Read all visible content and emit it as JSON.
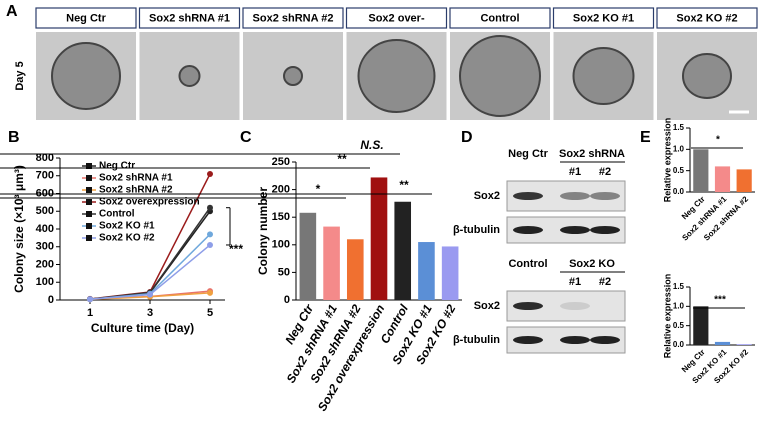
{
  "panel_A": {
    "panel_label": "A",
    "row_label": "Day 5",
    "labels": [
      "Neg Ctr",
      "Sox2 shRNA #1",
      "Sox2 shRNA #2",
      "Sox2 over-",
      "Control",
      "Sox2 KO #1",
      "Sox2 KO #2"
    ]
  },
  "panel_D": {
    "panel_label": "D",
    "top": {
      "lanes": [
        "Neg Ctr",
        "Sox2 shRNA"
      ],
      "sublanes": [
        "#1",
        "#2"
      ],
      "rows": [
        "Sox2",
        "β-tubulin"
      ]
    },
    "bottom": {
      "lanes": [
        "Control",
        "Sox2 KO"
      ],
      "sublanes": [
        "#1",
        "#2"
      ],
      "rows": [
        "Sox2",
        "β-tubulin"
      ]
    }
  },
  "chart_data": [
    {
      "type": "line",
      "panel_label": "B",
      "x_label": "Culture time (Day)",
      "y_label": "Colony size (×10³ μm³)",
      "x": [
        1,
        3,
        5
      ],
      "xlim": [
        0,
        5.5
      ],
      "xticks": [
        1,
        3,
        5
      ],
      "ylim": [
        0,
        800
      ],
      "yticks": [
        0,
        100,
        200,
        300,
        400,
        500,
        600,
        700,
        800
      ],
      "series": [
        {
          "name": "Neg Ctr",
          "color": "#222222",
          "values": [
            5,
            40,
            500
          ]
        },
        {
          "name": "Sox2 shRNA #1",
          "color": "#e8736a",
          "values": [
            4,
            20,
            50
          ]
        },
        {
          "name": "Sox2 shRNA #2",
          "color": "#f0a040",
          "values": [
            4,
            18,
            40
          ]
        },
        {
          "name": "Sox2 overexpression",
          "color": "#9b1c1c",
          "values": [
            6,
            45,
            710
          ]
        },
        {
          "name": "Control",
          "color": "#333333",
          "values": [
            5,
            42,
            520
          ]
        },
        {
          "name": "Sox2 KO #1",
          "color": "#6fa8dc",
          "values": [
            4,
            35,
            370
          ]
        },
        {
          "name": "Sox2 KO #2",
          "color": "#8e9ee8",
          "values": [
            4,
            30,
            310
          ]
        }
      ],
      "annotations": [
        "***"
      ]
    },
    {
      "type": "bar",
      "panel_label": "C",
      "y_label": "Colony number",
      "categories": [
        "Neg Ctr",
        "Sox2 shRNA #1",
        "Sox2 shRNA #2",
        "Sox2 overexpression",
        "Control",
        "Sox2 KO #1",
        "Sox2 KO #2"
      ],
      "values": [
        158,
        133,
        110,
        222,
        178,
        105,
        97
      ],
      "colors": [
        "#777777",
        "#f48a8a",
        "#f07030",
        "#a01010",
        "#222222",
        "#5b8fd6",
        "#9a9af0"
      ],
      "ylim": [
        0,
        250
      ],
      "yticks": [
        0,
        50,
        100,
        150,
        200,
        250
      ],
      "annotations": [
        "*",
        "**",
        "N.S.",
        "**"
      ]
    },
    {
      "type": "bar",
      "panel_label": "E",
      "y_label": "Relative expression",
      "categories": [
        "Neg Ctr",
        "Sox2 shRNA #1",
        "Sox2 shRNA #2"
      ],
      "values": [
        1.0,
        0.6,
        0.53
      ],
      "colors": [
        "#777777",
        "#f48a8a",
        "#f07030"
      ],
      "ylim": [
        0,
        1.5
      ],
      "yticks": [
        {
          "value": 0,
          "label": "0.0"
        },
        {
          "value": 0.5,
          "label": "0.5"
        },
        {
          "value": 1,
          "label": "1.0"
        },
        {
          "value": 1.5,
          "label": "1.5"
        }
      ],
      "annotations": [
        "*"
      ]
    },
    {
      "type": "bar",
      "y_label": "Relative expression",
      "categories": [
        "Neg Ctr",
        "Sox2 KO #1",
        "Sox2 KO #2"
      ],
      "values": [
        1.0,
        0.08,
        0.02
      ],
      "colors": [
        "#222222",
        "#5b8fd6",
        "#9a9af0"
      ],
      "ylim": [
        0,
        1.5
      ],
      "yticks": [
        {
          "value": 0,
          "label": "0.0"
        },
        {
          "value": 0.5,
          "label": "0.5"
        },
        {
          "value": 1,
          "label": "1.0"
        },
        {
          "value": 1.5,
          "label": "1.5"
        }
      ],
      "annotations": [
        "***"
      ]
    }
  ]
}
